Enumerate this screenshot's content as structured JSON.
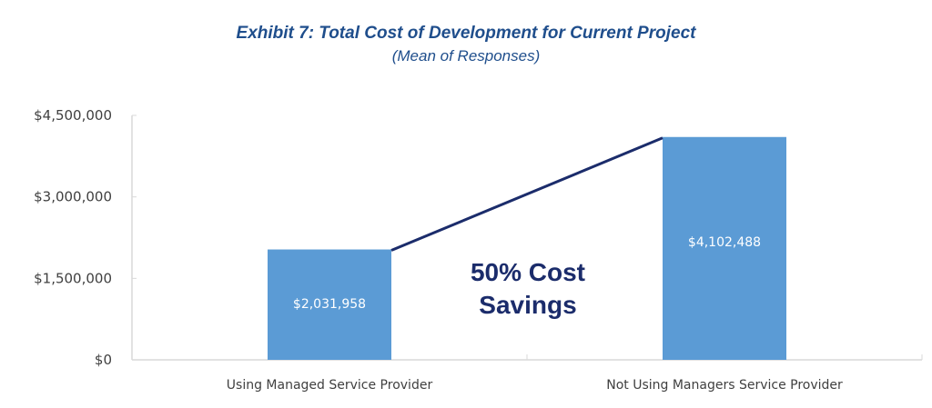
{
  "chart_data": {
    "type": "bar",
    "title": "Exhibit 7: Total Cost of Development for Current Project",
    "subtitle": "(Mean of Responses)",
    "xlabel": "",
    "ylabel": "",
    "categories": [
      "Using Managed Service Provider",
      "Not Using Managers Service Provider"
    ],
    "values": [
      2031958,
      4102488
    ],
    "data_labels": [
      "$2,031,958",
      "$4,102,488"
    ],
    "ylim": [
      0,
      4500000
    ],
    "yticks": [
      0,
      1500000,
      3000000,
      4500000
    ],
    "ytick_labels": [
      "$0",
      "$1,500,000",
      "$3,000,000",
      "$4,500,000"
    ],
    "grid": false,
    "legend": "none",
    "connector_line": true,
    "annotation": [
      "50% Cost",
      "Savings"
    ],
    "colors": {
      "bar": "#5b9bd5",
      "connector": "#1b2c6b",
      "title": "#1f4e8c",
      "annotation": "#1b2c6b",
      "axis": "#d9d9d9"
    }
  }
}
